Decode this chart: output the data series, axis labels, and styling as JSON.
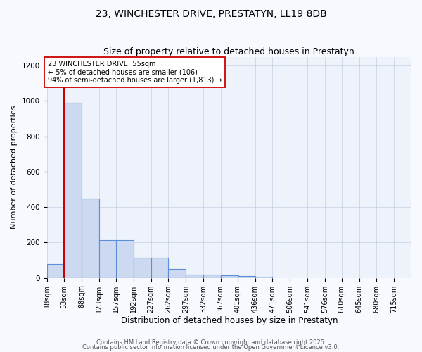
{
  "title": "23, WINCHESTER DRIVE, PRESTATYN, LL19 8DB",
  "subtitle": "Size of property relative to detached houses in Prestatyn",
  "xlabel": "Distribution of detached houses by size in Prestatyn",
  "ylabel": "Number of detached properties",
  "bin_starts": [
    18,
    53,
    88,
    123,
    157,
    192,
    227,
    262,
    297,
    332,
    367,
    401,
    436,
    471,
    506,
    541,
    576,
    610,
    645,
    680
  ],
  "bin_width": 35,
  "bar_heights": [
    80,
    990,
    450,
    215,
    215,
    115,
    115,
    50,
    20,
    20,
    15,
    10,
    5,
    0,
    0,
    0,
    0,
    0,
    0,
    0
  ],
  "bar_color": "#ccd9f0",
  "bar_edge_color": "#5b8dd9",
  "property_line_x": 53,
  "property_line_color": "#cc0000",
  "annotation_text": "23 WINCHESTER DRIVE: 55sqm\n← 5% of detached houses are smaller (106)\n94% of semi-detached houses are larger (1,813) →",
  "annotation_box_facecolor": "#ffffff",
  "annotation_box_edgecolor": "#cc0000",
  "ylim": [
    0,
    1250
  ],
  "yticks": [
    0,
    200,
    400,
    600,
    800,
    1000,
    1200
  ],
  "xlim_left": 18,
  "xlim_right": 750,
  "background_color": "#f7f9ff",
  "plot_bg_color": "#eef2fb",
  "grid_color": "#c0cce0",
  "tick_labels": [
    "18sqm",
    "53sqm",
    "88sqm",
    "123sqm",
    "157sqm",
    "192sqm",
    "227sqm",
    "262sqm",
    "297sqm",
    "332sqm",
    "367sqm",
    "401sqm",
    "436sqm",
    "471sqm",
    "506sqm",
    "541sqm",
    "576sqm",
    "610sqm",
    "645sqm",
    "680sqm",
    "715sqm"
  ],
  "tick_positions": [
    18,
    53,
    88,
    123,
    157,
    192,
    227,
    262,
    297,
    332,
    367,
    401,
    436,
    471,
    506,
    541,
    576,
    610,
    645,
    680,
    715
  ],
  "footer_line1": "Contains HM Land Registry data © Crown copyright and database right 2025.",
  "footer_line2": "Contains public sector information licensed under the Open Government Licence v3.0.",
  "title_fontsize": 10,
  "subtitle_fontsize": 9,
  "xlabel_fontsize": 8.5,
  "ylabel_fontsize": 8,
  "tick_fontsize": 7,
  "footer_fontsize": 6,
  "annotation_fontsize": 7
}
